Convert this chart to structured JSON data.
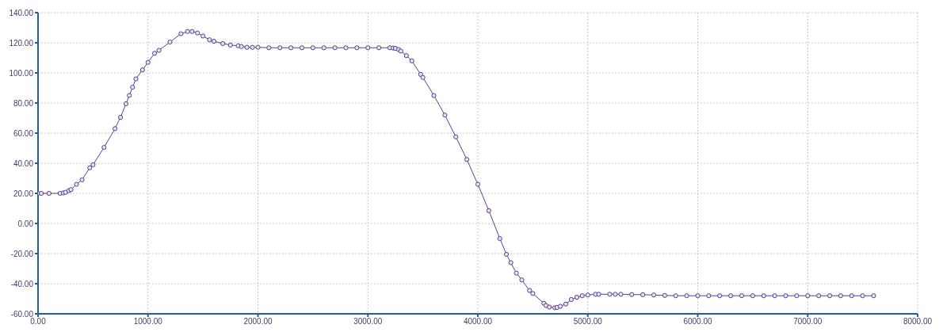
{
  "chart_data": {
    "type": "line",
    "x": [
      0,
      30,
      100,
      200,
      230,
      250,
      280,
      300,
      350,
      400,
      470,
      500,
      600,
      700,
      750,
      800,
      830,
      860,
      890,
      950,
      1000,
      1060,
      1100,
      1200,
      1300,
      1360,
      1400,
      1450,
      1500,
      1560,
      1600,
      1680,
      1750,
      1820,
      1850,
      1900,
      1950,
      2000,
      2100,
      2200,
      2300,
      2400,
      2500,
      2600,
      2700,
      2800,
      2900,
      3000,
      3100,
      3200,
      3230,
      3250,
      3280,
      3300,
      3350,
      3400,
      3480,
      3500,
      3600,
      3700,
      3800,
      3900,
      4000,
      4100,
      4200,
      4260,
      4300,
      4350,
      4400,
      4470,
      4500,
      4600,
      4620,
      4650,
      4700,
      4720,
      4750,
      4800,
      4850,
      4900,
      4950,
      5000,
      5070,
      5100,
      5200,
      5250,
      5300,
      5400,
      5500,
      5600,
      5700,
      5800,
      5900,
      6000,
      6100,
      6200,
      6300,
      6400,
      6500,
      6600,
      6700,
      6800,
      6900,
      7000,
      7100,
      7200,
      7300,
      7400,
      7500,
      7600
    ],
    "series": [
      {
        "color": "#5b3f8c",
        "values": [
          20,
          20,
          20,
          20,
          20.3,
          20.7,
          21.8,
          22.5,
          26,
          29,
          37,
          39,
          50.5,
          63,
          70.5,
          79.5,
          85,
          90.5,
          96,
          102,
          107,
          113,
          115,
          120.5,
          126,
          127.5,
          127.5,
          126.5,
          124.5,
          122,
          121,
          119.5,
          118.5,
          118,
          117.5,
          117,
          117,
          117,
          116.7,
          116.7,
          116.7,
          116.7,
          116.7,
          116.7,
          116.7,
          116.7,
          116.7,
          116.7,
          116.7,
          116.7,
          116.5,
          116.3,
          115.5,
          114.5,
          111.5,
          108,
          99,
          97,
          85,
          72,
          57.5,
          42.5,
          26,
          8.5,
          -10,
          -20.5,
          -26,
          -33,
          -37.5,
          -44.5,
          -46.5,
          -53,
          -54.5,
          -55.5,
          -56,
          -55.8,
          -55,
          -53.5,
          -50.5,
          -49,
          -48,
          -47.5,
          -47,
          -47,
          -47,
          -47,
          -47,
          -47.2,
          -47.3,
          -47.5,
          -47.8,
          -48,
          -48,
          -48,
          -48,
          -48,
          -48,
          -48,
          -48,
          -48,
          -48,
          -48,
          -48,
          -48,
          -48,
          -48,
          -48,
          -48,
          -48,
          -48
        ]
      }
    ],
    "xlim": [
      0,
      8000
    ],
    "xticks": [
      {
        "value": 0,
        "label": "0.00"
      },
      {
        "value": 1000,
        "label": "1000.00"
      },
      {
        "value": 2000,
        "label": "2000.00"
      },
      {
        "value": 3000,
        "label": "3000.00"
      },
      {
        "value": 4000,
        "label": "4000.00"
      },
      {
        "value": 5000,
        "label": "5000.00"
      },
      {
        "value": 6000,
        "label": "6000.00"
      },
      {
        "value": 7000,
        "label": "7000.00"
      },
      {
        "value": 8000,
        "label": "8000.00"
      }
    ],
    "ylim": [
      -60,
      140
    ],
    "yticks": [
      {
        "value": -60,
        "label": "-60.00"
      },
      {
        "value": -40,
        "label": "-40.00"
      },
      {
        "value": -20,
        "label": "-20.00"
      },
      {
        "value": 0,
        "label": "0.00"
      },
      {
        "value": 20,
        "label": "20.00"
      },
      {
        "value": 40,
        "label": "40.00"
      },
      {
        "value": 60,
        "label": "60.00"
      },
      {
        "value": 80,
        "label": "80.00"
      },
      {
        "value": 100,
        "label": "100.00"
      },
      {
        "value": 120,
        "label": "120.00"
      },
      {
        "value": 140,
        "label": "140.00"
      }
    ],
    "grid": true,
    "marker": "circle",
    "line_style": "solid"
  }
}
